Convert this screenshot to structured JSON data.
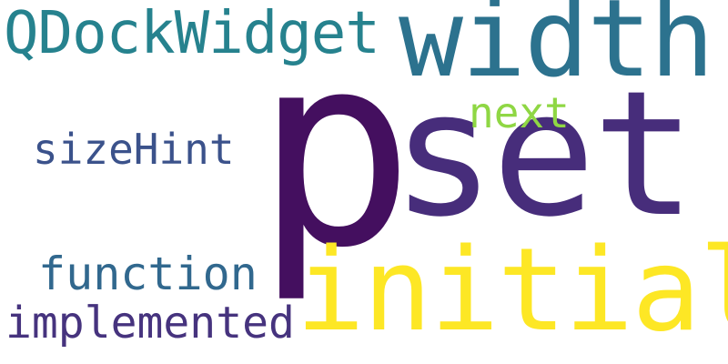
{
  "cloud": {
    "background": "#ffffff",
    "words": [
      {
        "key": "p",
        "text": "p",
        "color": "#440f5f"
      },
      {
        "key": "set",
        "text": "set",
        "color": "#472d7b"
      },
      {
        "key": "width",
        "text": "width",
        "color": "#2c728e"
      },
      {
        "key": "initial",
        "text": "initial",
        "color": "#fde725"
      },
      {
        "key": "qdockwidget",
        "text": "QDockWidget",
        "color": "#26828e"
      },
      {
        "key": "next",
        "text": "next",
        "color": "#8fd744"
      },
      {
        "key": "sizehint",
        "text": "sizeHint",
        "color": "#3b528b"
      },
      {
        "key": "function",
        "text": "function",
        "color": "#31688e"
      },
      {
        "key": "implemented",
        "text": "implemented",
        "color": "#46337e"
      }
    ]
  }
}
